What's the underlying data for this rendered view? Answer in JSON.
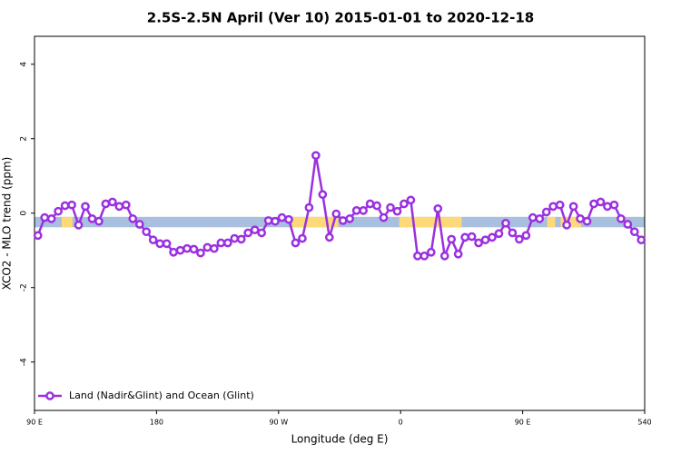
{
  "chart_data": {
    "type": "line",
    "title": "2.5S-2.5N April (Ver 10)   2015-01-01 to 2020-12-18",
    "x_label": "Longitude (deg E)",
    "y_label": "XCO2 - MLO trend (ppm)",
    "xlim": [
      90,
      540
    ],
    "ylim": [
      -5.3,
      4.75
    ],
    "xticks": [
      {
        "value": 90,
        "label": "90 E"
      },
      180,
      {
        "value": 270,
        "label": "90 W"
      },
      {
        "value": 360,
        "label": "0"
      },
      {
        "value": 450,
        "label": "90 E"
      },
      540
    ],
    "yticks": [
      -4,
      -2,
      0,
      2,
      4
    ],
    "legend": "bottom-left",
    "band": {
      "ylim": [
        -0.38,
        -0.1
      ],
      "segments": [
        {
          "xlim": [
            90,
            540
          ],
          "color": "#a8bfe0"
        },
        {
          "xlim": [
            110,
            118
          ],
          "color": "#fdd978"
        },
        {
          "xlim": [
            280,
            314
          ],
          "color": "#fdd978"
        },
        {
          "xlim": [
            359,
            405
          ],
          "color": "#fdd978"
        },
        {
          "xlim": [
            468,
            474
          ],
          "color": "#fdd978"
        },
        {
          "xlim": [
            478,
            493
          ],
          "color": "#fdd978"
        }
      ]
    },
    "x": [
      92.5,
      97.5,
      102.5,
      107.5,
      112.5,
      117.5,
      122.5,
      127.5,
      132.5,
      137.5,
      142.5,
      147.5,
      152.5,
      157.5,
      162.5,
      167.5,
      172.5,
      177.5,
      182.5,
      187.5,
      192.5,
      197.5,
      202.5,
      207.5,
      212.5,
      217.5,
      222.5,
      227.5,
      232.5,
      237.5,
      242.5,
      247.5,
      252.5,
      257.5,
      262.5,
      267.5,
      272.5,
      277.5,
      282.5,
      287.5,
      292.5,
      297.5,
      302.5,
      307.5,
      312.5,
      317.5,
      322.5,
      327.5,
      332.5,
      337.5,
      342.5,
      347.5,
      352.5,
      357.5,
      362.5,
      367.5,
      372.5,
      377.5,
      382.5,
      387.5,
      392.5,
      397.5,
      402.5,
      407.5,
      412.5,
      417.5,
      422.5,
      427.5,
      432.5,
      437.5,
      442.5,
      447.5,
      452.5,
      457.5,
      462.5,
      467.5,
      472.5,
      477.5,
      482.5,
      487.5,
      492.5,
      497.5,
      502.5,
      507.5,
      512.5,
      517.5,
      522.5,
      527.5,
      532.5,
      537.5
    ],
    "series": [
      {
        "name": "Land (Nadir&Glint) and Ocean (Glint)",
        "color": "#9b30e0",
        "values": [
          -0.6,
          -0.12,
          -0.15,
          0.05,
          0.2,
          0.22,
          -0.32,
          0.18,
          -0.15,
          -0.22,
          0.25,
          0.3,
          0.18,
          0.22,
          -0.15,
          -0.3,
          -0.5,
          -0.72,
          -0.82,
          -0.82,
          -1.05,
          -1.0,
          -0.95,
          -0.97,
          -1.07,
          -0.92,
          -0.95,
          -0.8,
          -0.8,
          -0.68,
          -0.7,
          -0.53,
          -0.45,
          -0.53,
          -0.2,
          -0.22,
          -0.12,
          -0.17,
          -0.8,
          -0.68,
          0.15,
          1.55,
          0.5,
          -0.65,
          -0.02,
          -0.2,
          -0.15,
          0.07,
          0.07,
          0.25,
          0.2,
          -0.12,
          0.15,
          0.05,
          0.25,
          0.35,
          -1.15,
          -1.15,
          -1.05,
          0.12,
          -1.15,
          -0.7,
          -1.1,
          -0.65,
          -0.63,
          -0.8,
          -0.72,
          -0.65,
          -0.55,
          -0.27,
          -0.53,
          -0.7,
          -0.6,
          -0.12,
          -0.15,
          0.03,
          0.18,
          0.22,
          -0.32,
          0.18,
          -0.15,
          -0.22,
          0.25,
          0.3,
          0.18,
          0.22,
          -0.15,
          -0.3,
          -0.5,
          -0.72
        ]
      }
    ]
  }
}
